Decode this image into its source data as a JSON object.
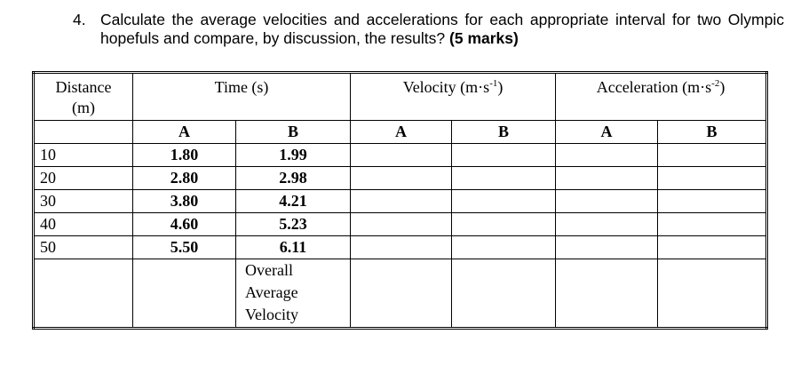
{
  "question": {
    "number": "4.",
    "text": "Calculate the average velocities and accelerations for each appropriate interval for two Olympic hopefuls and compare, by discussion, the results?",
    "marks": "(5 marks)"
  },
  "table": {
    "headers": {
      "distance": "Distance",
      "distance_unit": "(m)",
      "time": "Time (s)",
      "velocity": "Velocity (m",
      "velocity_s": "s",
      "velocity_exp": "-1",
      "velocity_close": ")",
      "acceleration": "Acceleration (m",
      "acceleration_s": "s",
      "acceleration_exp": "-2",
      "acceleration_close": ")"
    },
    "subheaders": [
      "A",
      "B",
      "A",
      "B",
      "A",
      "B"
    ],
    "rows": [
      {
        "distance": "10",
        "a": "1.80",
        "b": "1.99"
      },
      {
        "distance": "20",
        "a": "2.80",
        "b": "2.98"
      },
      {
        "distance": "30",
        "a": "3.80",
        "b": "4.21"
      },
      {
        "distance": "40",
        "a": "4.60",
        "b": "5.23"
      },
      {
        "distance": "50",
        "a": "5.50",
        "b": "6.11"
      }
    ],
    "overall_line1": "Overall",
    "overall_line2": "Average",
    "overall_line3": "Velocity"
  }
}
